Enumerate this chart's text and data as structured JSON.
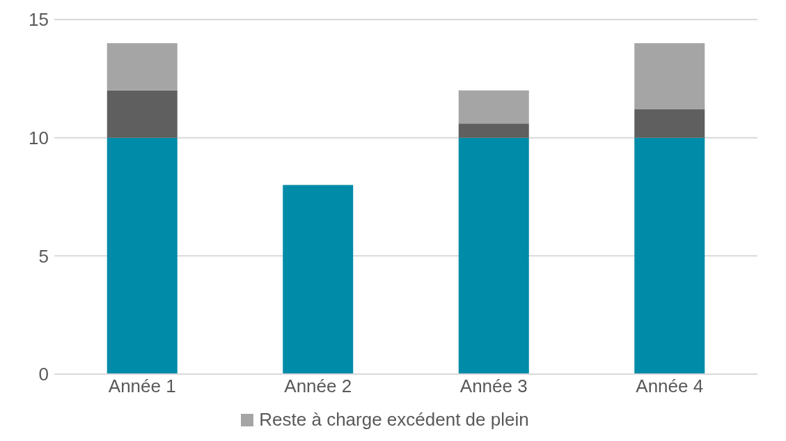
{
  "chart_data": {
    "type": "bar",
    "stacked": true,
    "categories": [
      "Année 1",
      "Année 2",
      "Année 3",
      "Année 4"
    ],
    "series": [
      {
        "color": "#008ba8",
        "values": [
          10,
          8,
          10,
          10
        ]
      },
      {
        "color": "#5f5f5f",
        "values": [
          2,
          null,
          0.6,
          1.2
        ]
      },
      {
        "name": "Reste à charge excédent de plein",
        "color": "#a5a5a5",
        "values": [
          2,
          null,
          1.4,
          2.8
        ]
      }
    ],
    "ylim": [
      0,
      15
    ],
    "yticks": [
      0,
      5,
      10,
      15
    ],
    "grid": "y",
    "legend": "bottom"
  }
}
